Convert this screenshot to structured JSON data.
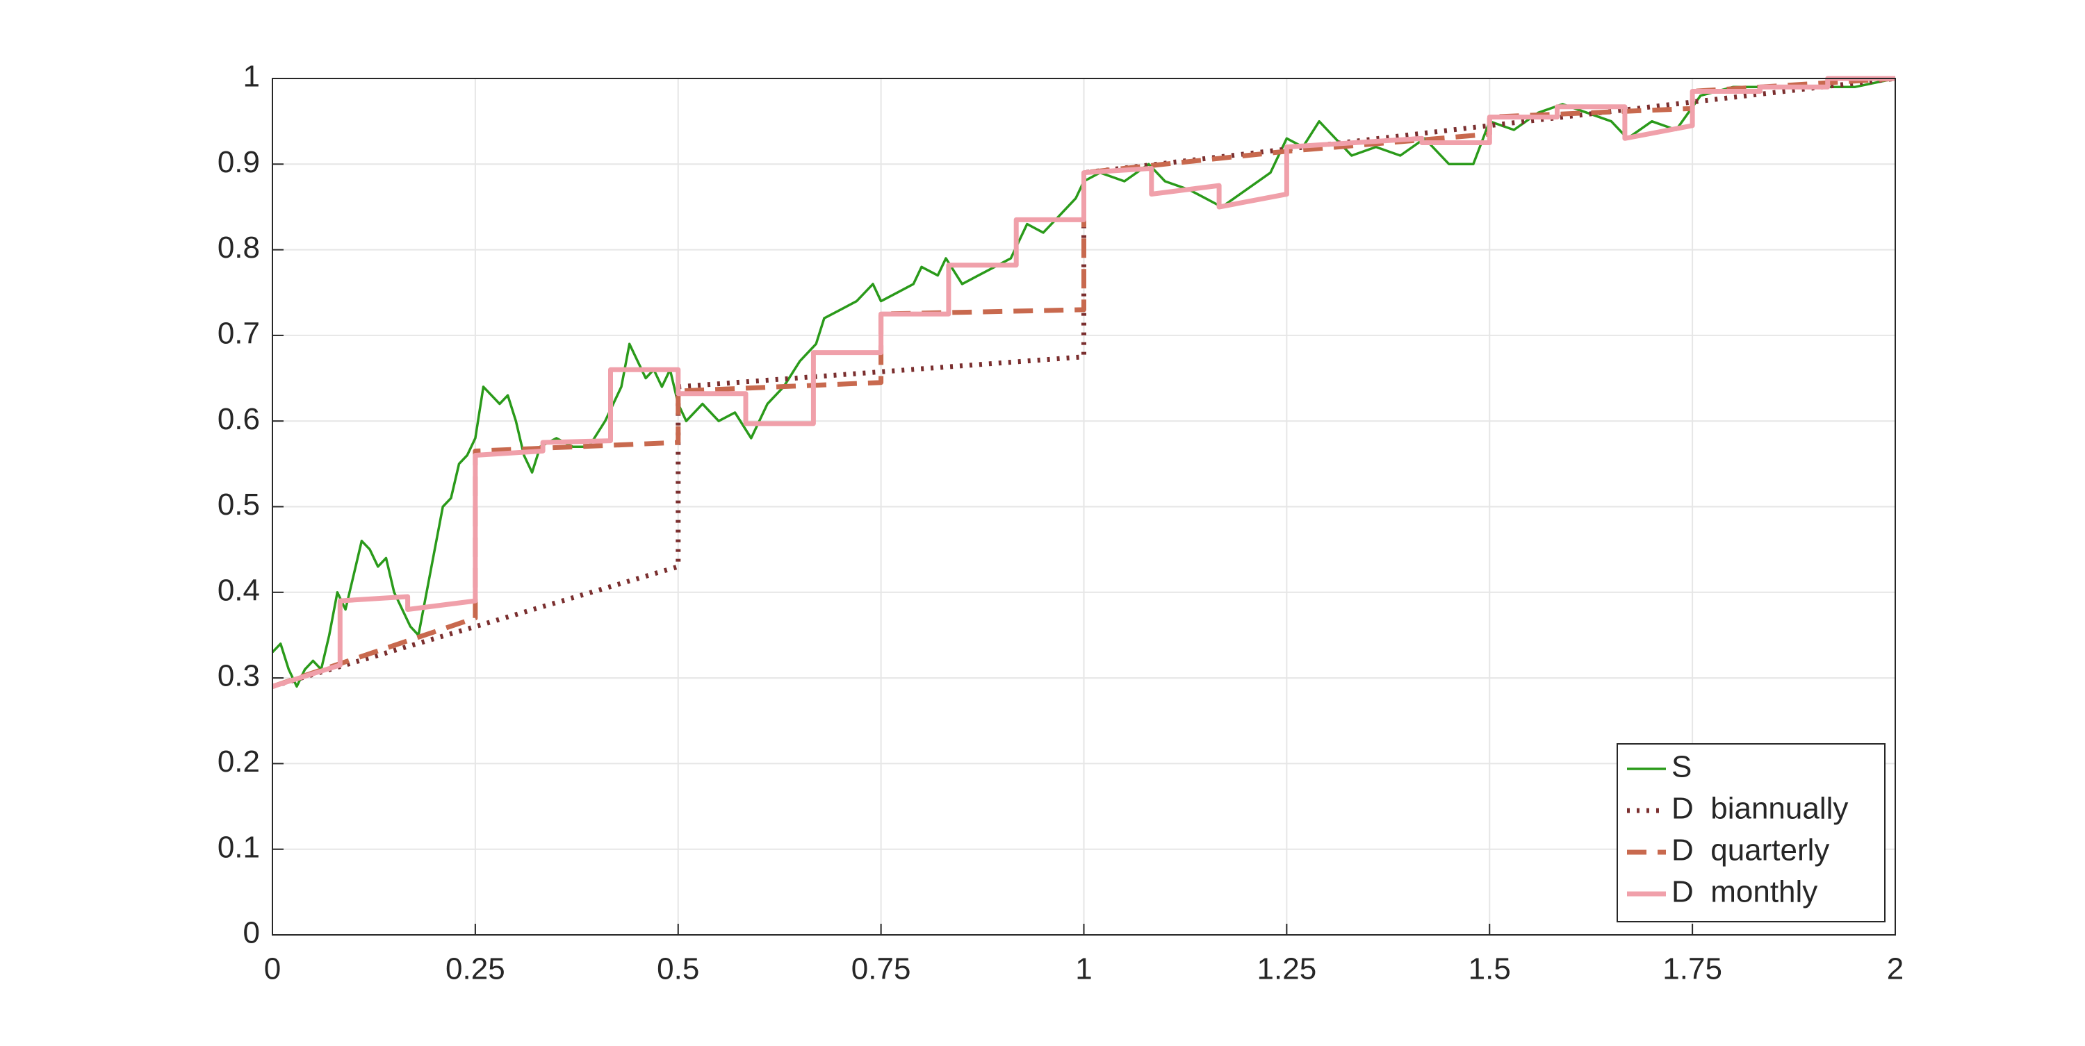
{
  "chart_data": {
    "type": "line",
    "xlim": [
      0,
      2
    ],
    "ylim": [
      0,
      1
    ],
    "xticks": [
      0,
      0.25,
      0.5,
      0.75,
      1,
      1.25,
      1.5,
      1.75,
      2
    ],
    "yticks": [
      0,
      0.1,
      0.2,
      0.3,
      0.4,
      0.5,
      0.6,
      0.7,
      0.8,
      0.9,
      1
    ],
    "grid": true,
    "legend": "lower right",
    "series": [
      {
        "name": "S",
        "color": "#2a9a1a",
        "style": "solid",
        "x": [
          0,
          0.01,
          0.02,
          0.03,
          0.04,
          0.05,
          0.06,
          0.07,
          0.08,
          0.09,
          0.1,
          0.11,
          0.12,
          0.13,
          0.14,
          0.15,
          0.16,
          0.17,
          0.18,
          0.19,
          0.2,
          0.21,
          0.22,
          0.23,
          0.24,
          0.25,
          0.26,
          0.27,
          0.28,
          0.29,
          0.3,
          0.31,
          0.32,
          0.33,
          0.35,
          0.37,
          0.39,
          0.41,
          0.43,
          0.44,
          0.45,
          0.46,
          0.47,
          0.48,
          0.49,
          0.5,
          0.51,
          0.53,
          0.55,
          0.57,
          0.59,
          0.61,
          0.63,
          0.65,
          0.67,
          0.68,
          0.7,
          0.72,
          0.74,
          0.75,
          0.77,
          0.79,
          0.8,
          0.82,
          0.83,
          0.85,
          0.87,
          0.89,
          0.91,
          0.93,
          0.95,
          0.97,
          0.99,
          1,
          1.02,
          1.05,
          1.08,
          1.1,
          1.13,
          1.15,
          1.17,
          1.2,
          1.23,
          1.25,
          1.27,
          1.29,
          1.31,
          1.33,
          1.36,
          1.39,
          1.42,
          1.45,
          1.48,
          1.5,
          1.53,
          1.56,
          1.59,
          1.62,
          1.65,
          1.67,
          1.7,
          1.73,
          1.76,
          1.8,
          1.85,
          1.9,
          1.95,
          2
        ],
        "values": [
          0.33,
          0.34,
          0.31,
          0.29,
          0.31,
          0.32,
          0.31,
          0.35,
          0.4,
          0.38,
          0.42,
          0.46,
          0.45,
          0.43,
          0.44,
          0.4,
          0.38,
          0.36,
          0.35,
          0.4,
          0.45,
          0.5,
          0.51,
          0.55,
          0.56,
          0.58,
          0.64,
          0.63,
          0.62,
          0.63,
          0.6,
          0.56,
          0.54,
          0.57,
          0.58,
          0.57,
          0.57,
          0.6,
          0.64,
          0.69,
          0.67,
          0.65,
          0.66,
          0.64,
          0.66,
          0.62,
          0.6,
          0.62,
          0.6,
          0.61,
          0.58,
          0.62,
          0.64,
          0.67,
          0.69,
          0.72,
          0.73,
          0.74,
          0.76,
          0.74,
          0.75,
          0.76,
          0.78,
          0.77,
          0.79,
          0.76,
          0.77,
          0.78,
          0.79,
          0.83,
          0.82,
          0.84,
          0.86,
          0.88,
          0.89,
          0.88,
          0.9,
          0.88,
          0.87,
          0.86,
          0.85,
          0.87,
          0.89,
          0.93,
          0.92,
          0.95,
          0.93,
          0.91,
          0.92,
          0.91,
          0.93,
          0.9,
          0.9,
          0.95,
          0.94,
          0.96,
          0.97,
          0.96,
          0.95,
          0.93,
          0.95,
          0.94,
          0.98,
          0.99,
          0.99,
          0.99,
          0.99,
          1
        ]
      },
      {
        "name": "D  biannually",
        "color": "#7a2e2e",
        "style": "dotted",
        "x": [
          0,
          0.5,
          0.5,
          1,
          1,
          2
        ],
        "values": [
          0.29,
          0.43,
          0.64,
          0.675,
          0.89,
          1
        ]
      },
      {
        "name": "D  quarterly",
        "color": "#c8694e",
        "style": "dashed",
        "x": [
          0,
          0.25,
          0.25,
          0.5,
          0.5,
          0.75,
          0.75,
          1,
          1,
          1.25,
          1.25,
          1.5,
          1.5,
          1.75,
          1.75,
          2
        ],
        "values": [
          0.29,
          0.37,
          0.565,
          0.575,
          0.635,
          0.645,
          0.725,
          0.73,
          0.89,
          0.915,
          0.915,
          0.935,
          0.955,
          0.965,
          0.985,
          1
        ]
      },
      {
        "name": "D  monthly",
        "color": "#f0a0aa",
        "style": "solid",
        "x": [
          0,
          0.0833,
          0.0833,
          0.1667,
          0.1667,
          0.25,
          0.25,
          0.3333,
          0.3333,
          0.4167,
          0.4167,
          0.5,
          0.5,
          0.5833,
          0.5833,
          0.6667,
          0.6667,
          0.75,
          0.75,
          0.8333,
          0.8333,
          0.9167,
          0.9167,
          1,
          1,
          1.0833,
          1.0833,
          1.1667,
          1.1667,
          1.25,
          1.25,
          1.3333,
          1.3333,
          1.4167,
          1.4167,
          1.5,
          1.5,
          1.5833,
          1.5833,
          1.6667,
          1.6667,
          1.75,
          1.75,
          1.8333,
          1.8333,
          1.9167,
          1.9167,
          2
        ],
        "values": [
          0.29,
          0.315,
          0.39,
          0.395,
          0.38,
          0.39,
          0.56,
          0.565,
          0.575,
          0.577,
          0.66,
          0.66,
          0.632,
          0.632,
          0.597,
          0.597,
          0.68,
          0.68,
          0.725,
          0.725,
          0.782,
          0.782,
          0.835,
          0.835,
          0.89,
          0.895,
          0.865,
          0.875,
          0.85,
          0.865,
          0.92,
          0.925,
          0.925,
          0.93,
          0.925,
          0.925,
          0.955,
          0.955,
          0.967,
          0.967,
          0.93,
          0.945,
          0.985,
          0.985,
          0.99,
          0.99,
          1,
          1
        ]
      }
    ]
  }
}
